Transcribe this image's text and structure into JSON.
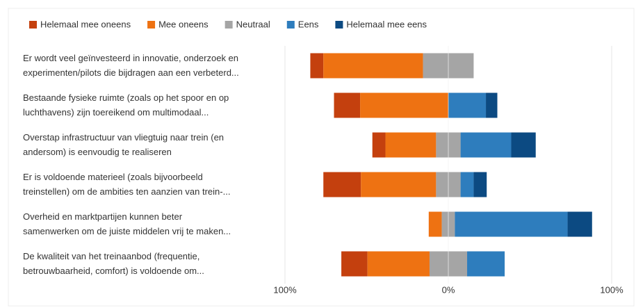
{
  "chart_data": {
    "type": "diverging-bar",
    "categories": [
      [
        "Er wordt veel geïnvesteerd in innovatie, onderzoek en",
        "experimenten/pilots die bijdragen aan een verbeterd..."
      ],
      [
        "Bestaande fysieke ruimte (zoals op het spoor en op",
        "luchthavens) zijn toereikend om multimodaal..."
      ],
      [
        "Overstap infrastructuur van vliegtuig naar trein (en",
        "andersom) is eenvoudig te realiseren"
      ],
      [
        "Er is voldoende materieel (zoals bijvoorbeeld",
        "treinstellen) om de ambities ten aanzien van trein-..."
      ],
      [
        "Overheid en marktpartijen kunnen beter",
        "samenwerken om de juiste middelen vrij te maken..."
      ],
      [
        "De kwaliteit van het treinaanbod (frequentie,",
        "betrouwbaarheid, comfort) is voldoende om..."
      ]
    ],
    "series": [
      {
        "name": "Helemaal mee oneens",
        "color": "#c4400e",
        "values": [
          8,
          16,
          8,
          23,
          0,
          16
        ]
      },
      {
        "name": "Mee oneens",
        "color": "#ee7212",
        "values": [
          61,
          54,
          31,
          46,
          8,
          38
        ]
      },
      {
        "name": "Neutraal",
        "color": "#a5a5a5",
        "values": [
          31,
          0,
          15,
          15,
          8,
          23
        ]
      },
      {
        "name": "Eens",
        "color": "#2e7dbd",
        "values": [
          0,
          23,
          31,
          8,
          69,
          23
        ]
      },
      {
        "name": "Helemaal mee eens",
        "color": "#0c4a82",
        "values": [
          0,
          7,
          15,
          8,
          15,
          0
        ]
      }
    ],
    "xlim": [
      -100,
      100
    ],
    "xticks": [
      {
        "value": -100,
        "label": "100%"
      },
      {
        "value": 0,
        "label": "0%"
      },
      {
        "value": 100,
        "label": "100%"
      }
    ]
  }
}
